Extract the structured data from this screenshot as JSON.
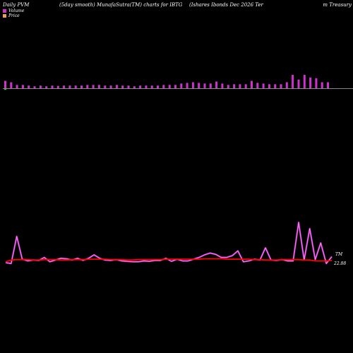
{
  "header": {
    "left": "Daily PVM",
    "mid1": "(5day smooth) MunafaSutra(TM) charts for IBTG",
    "mid2": "(Ishares Ibonds Dec 2026  Ter",
    "right": "m Treasury"
  },
  "legend": {
    "volume_label": "Volume",
    "price_label": "Price",
    "volume_color": "#cc33cc",
    "price_color": "#e8a060"
  },
  "colors": {
    "background": "#000000",
    "volume_bar": "#cc33cc",
    "baseline": "#888888",
    "price_line": "#ff0000",
    "volume_line": "#cc33cc"
  },
  "chart_data": {
    "type": "bar+line",
    "ylim": [
      0,
      1
    ],
    "annotations": {
      "volume_end_label": "TM",
      "price_end_label": "22.88"
    },
    "volume_bars": [
      0.55,
      0.45,
      0.25,
      0.25,
      0.2,
      0.15,
      0.2,
      0.15,
      0.2,
      0.18,
      0.2,
      0.2,
      0.2,
      0.2,
      0.25,
      0.25,
      0.25,
      0.2,
      0.2,
      0.25,
      0.2,
      0.2,
      0.15,
      0.2,
      0.2,
      0.2,
      0.2,
      0.25,
      0.25,
      0.25,
      0.35,
      0.4,
      0.45,
      0.4,
      0.35,
      0.35,
      0.5,
      0.35,
      0.25,
      0.3,
      0.3,
      0.3,
      0.55,
      0.4,
      0.35,
      0.3,
      0.3,
      0.3,
      0.45,
      1.0,
      0.65,
      1.0,
      0.8,
      0.75,
      0.45,
      0.45
    ],
    "volume_line": [
      0.08,
      0.06,
      0.68,
      0.16,
      0.12,
      0.14,
      0.13,
      0.2,
      0.1,
      0.14,
      0.18,
      0.17,
      0.14,
      0.18,
      0.13,
      0.18,
      0.26,
      0.18,
      0.14,
      0.13,
      0.15,
      0.12,
      0.11,
      0.1,
      0.1,
      0.12,
      0.11,
      0.13,
      0.13,
      0.18,
      0.11,
      0.16,
      0.12,
      0.12,
      0.16,
      0.2,
      0.26,
      0.3,
      0.27,
      0.2,
      0.2,
      0.24,
      0.35,
      0.1,
      0.12,
      0.16,
      0.14,
      0.42,
      0.14,
      0.13,
      0.15,
      0.12,
      0.12,
      1.0,
      0.14,
      0.86,
      0.15,
      0.53,
      0.06,
      0.22
    ],
    "price_line": [
      0.1,
      0.14,
      0.15,
      0.15,
      0.15,
      0.14,
      0.14,
      0.15,
      0.15,
      0.15,
      0.14,
      0.14,
      0.15,
      0.15,
      0.15,
      0.16,
      0.16,
      0.16,
      0.16,
      0.15,
      0.15,
      0.15,
      0.14,
      0.14,
      0.15,
      0.15,
      0.15,
      0.15,
      0.15,
      0.16,
      0.16,
      0.16,
      0.16,
      0.16,
      0.16,
      0.16,
      0.17,
      0.17,
      0.17,
      0.17,
      0.16,
      0.16,
      0.16,
      0.16,
      0.16,
      0.15,
      0.15,
      0.14,
      0.14,
      0.14,
      0.15,
      0.15,
      0.15,
      0.15,
      0.14,
      0.14,
      0.12,
      0.12,
      0.12,
      0.13
    ]
  }
}
